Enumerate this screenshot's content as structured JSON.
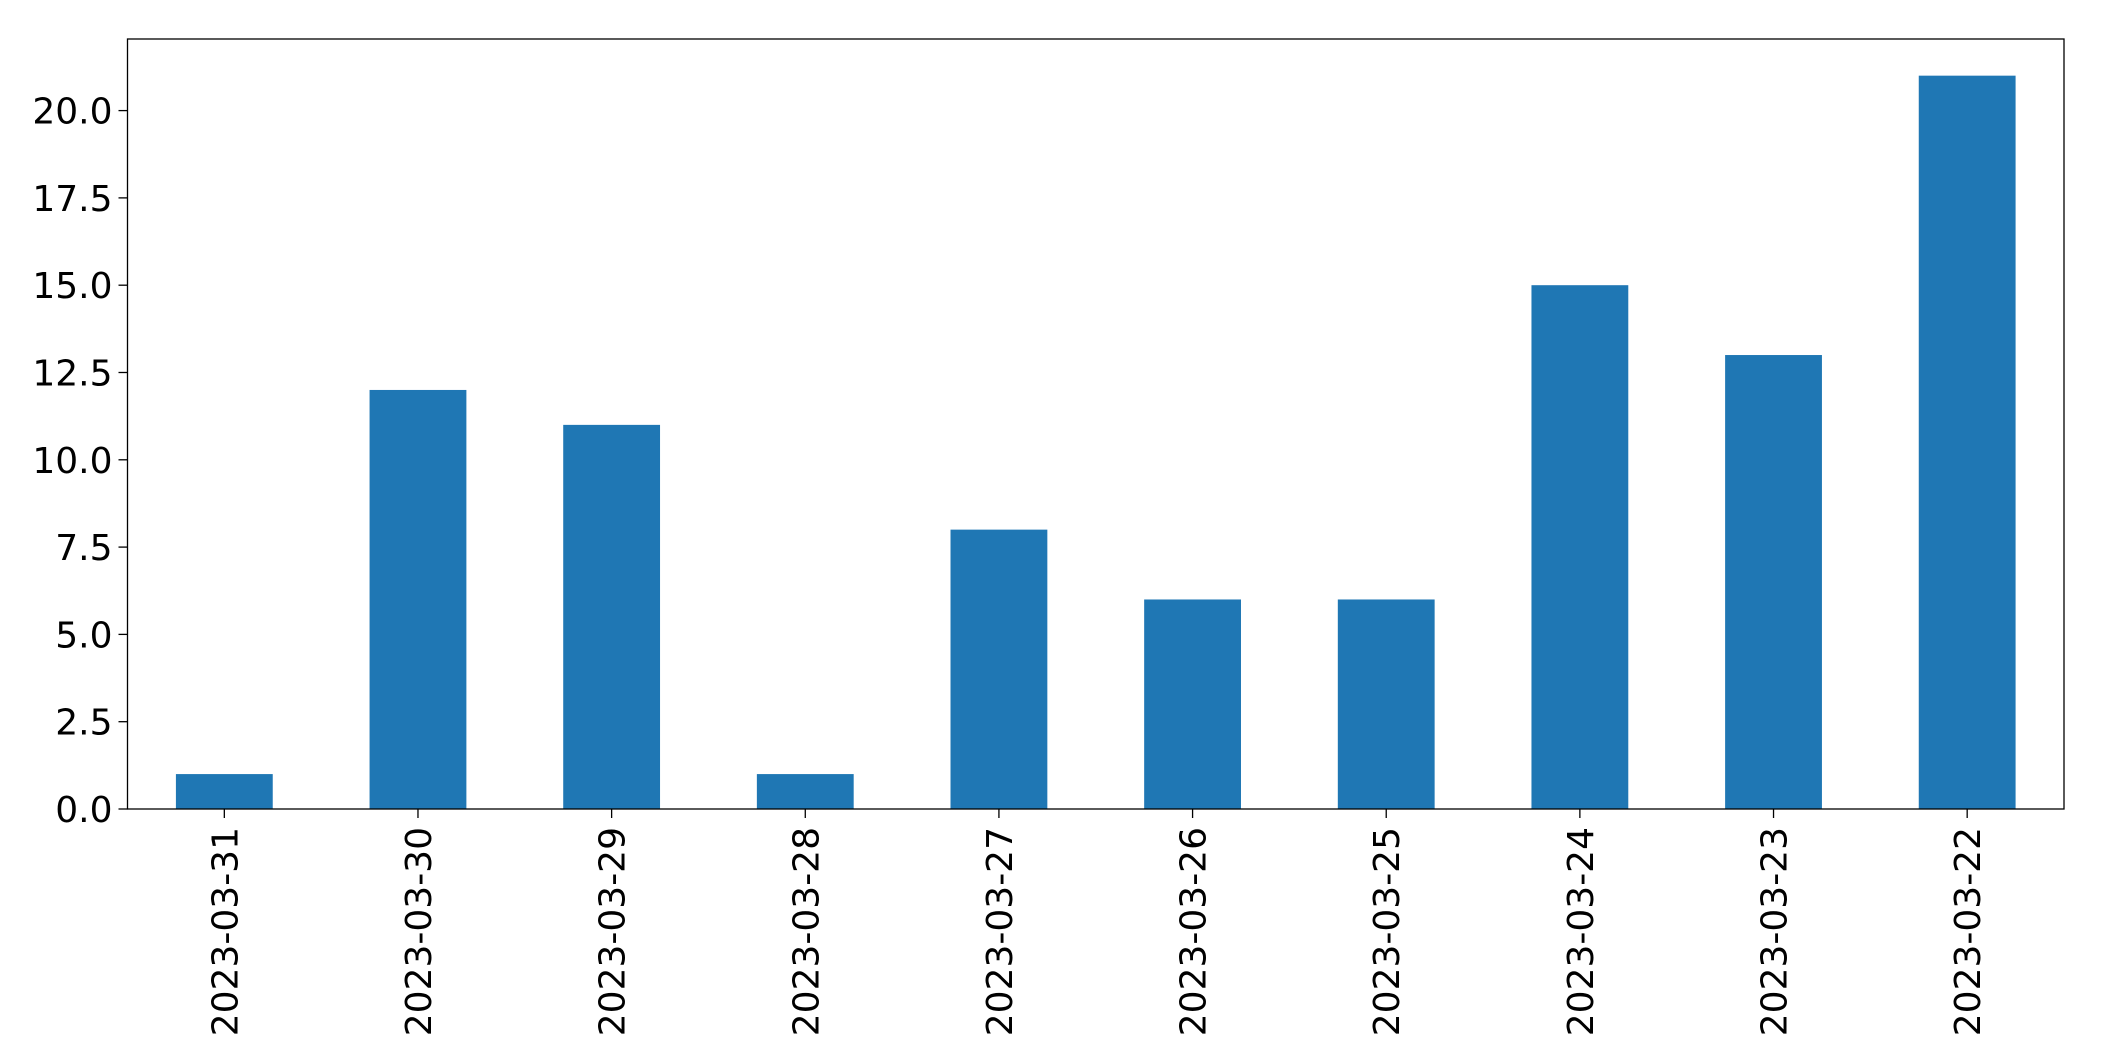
{
  "chart_data": {
    "type": "bar",
    "categories": [
      "2023-03-31",
      "2023-03-30",
      "2023-03-29",
      "2023-03-28",
      "2023-03-27",
      "2023-03-26",
      "2023-03-25",
      "2023-03-24",
      "2023-03-23",
      "2023-03-22"
    ],
    "values": [
      1,
      12,
      11,
      1,
      8,
      6,
      6,
      15,
      13,
      21
    ],
    "color": "#1f77b4",
    "ylim": [
      0,
      22.05
    ],
    "yticks": [
      {
        "value": 0,
        "label": "0.0"
      },
      2.5,
      {
        "value": 5,
        "label": "5.0"
      },
      7.5,
      {
        "value": 10,
        "label": "10.0"
      },
      12.5,
      {
        "value": 15,
        "label": "15.0"
      },
      17.5,
      {
        "value": 20,
        "label": "20.0"
      }
    ],
    "grid": false
  }
}
